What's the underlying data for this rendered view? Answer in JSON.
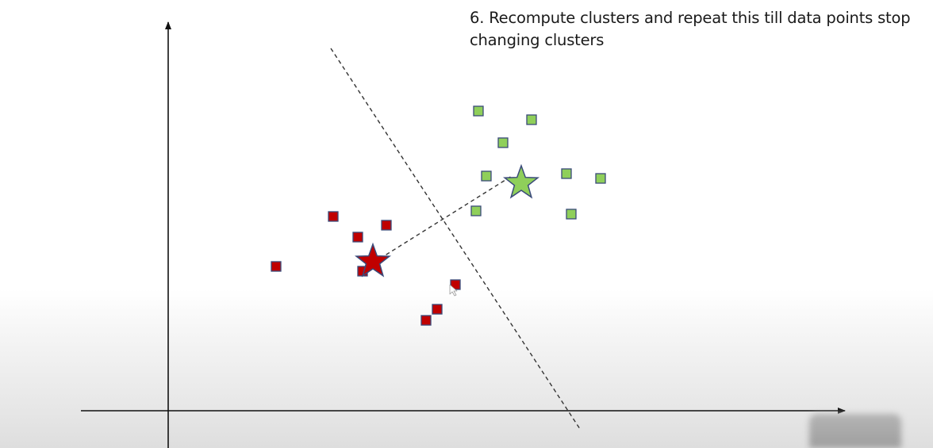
{
  "title": "6. Recompute clusters and repeat this till data points stop changing clusters",
  "colors": {
    "red_fill": "#c00000",
    "green_fill": "#8fcf5a",
    "marker_stroke": "#3a4a7a",
    "axis": "#111111",
    "dashed_line": "#333333"
  },
  "clusters": [
    {
      "name": "red",
      "points": [
        [
          348,
          336
        ],
        [
          420,
          273
        ],
        [
          451,
          299
        ],
        [
          487,
          284
        ],
        [
          457,
          342
        ],
        [
          574,
          359
        ],
        [
          551,
          390
        ],
        [
          537,
          404
        ]
      ],
      "centroid": [
        470,
        330
      ]
    },
    {
      "name": "green",
      "points": [
        [
          603,
          140
        ],
        [
          670,
          151
        ],
        [
          634,
          180
        ],
        [
          613,
          222
        ],
        [
          714,
          219
        ],
        [
          757,
          225
        ],
        [
          600,
          266
        ],
        [
          720,
          270
        ]
      ],
      "centroid": [
        657,
        231
      ]
    }
  ]
}
